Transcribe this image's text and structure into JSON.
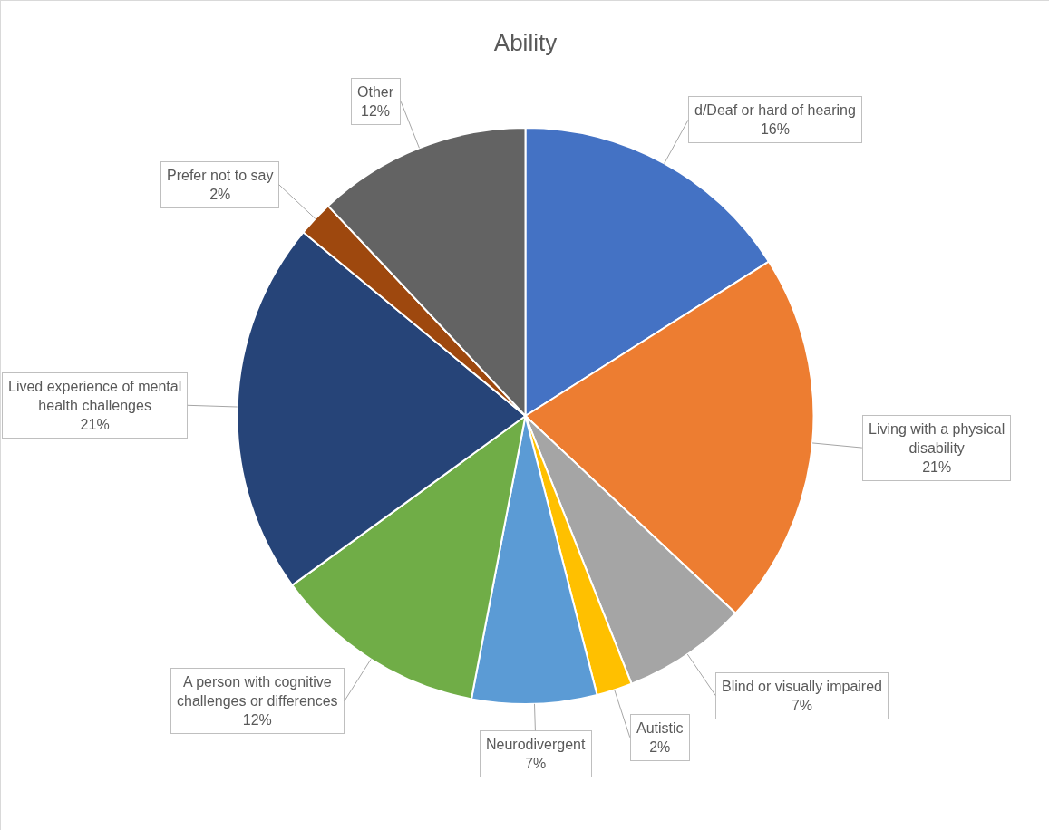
{
  "chart_data": {
    "type": "pie",
    "title": "Ability",
    "categories": [
      "d/Deaf or hard of hearing",
      "Living with a physical disability",
      "Blind or visually impaired",
      "Autistic",
      "Neurodivergent",
      "A person with cognitive challenges or differences",
      "Lived experience of mental health challenges",
      "Prefer not to say",
      "Other"
    ],
    "values": [
      16,
      21,
      7,
      2,
      7,
      12,
      21,
      2,
      12
    ],
    "value_labels": [
      "16%",
      "21%",
      "7%",
      "2%",
      "7%",
      "12%",
      "21%",
      "2%",
      "12%"
    ],
    "colors": [
      "#4472c4",
      "#ed7d31",
      "#a5a5a5",
      "#ffc000",
      "#5b9bd5",
      "#70ad47",
      "#264478",
      "#9e480e",
      "#636363"
    ]
  }
}
